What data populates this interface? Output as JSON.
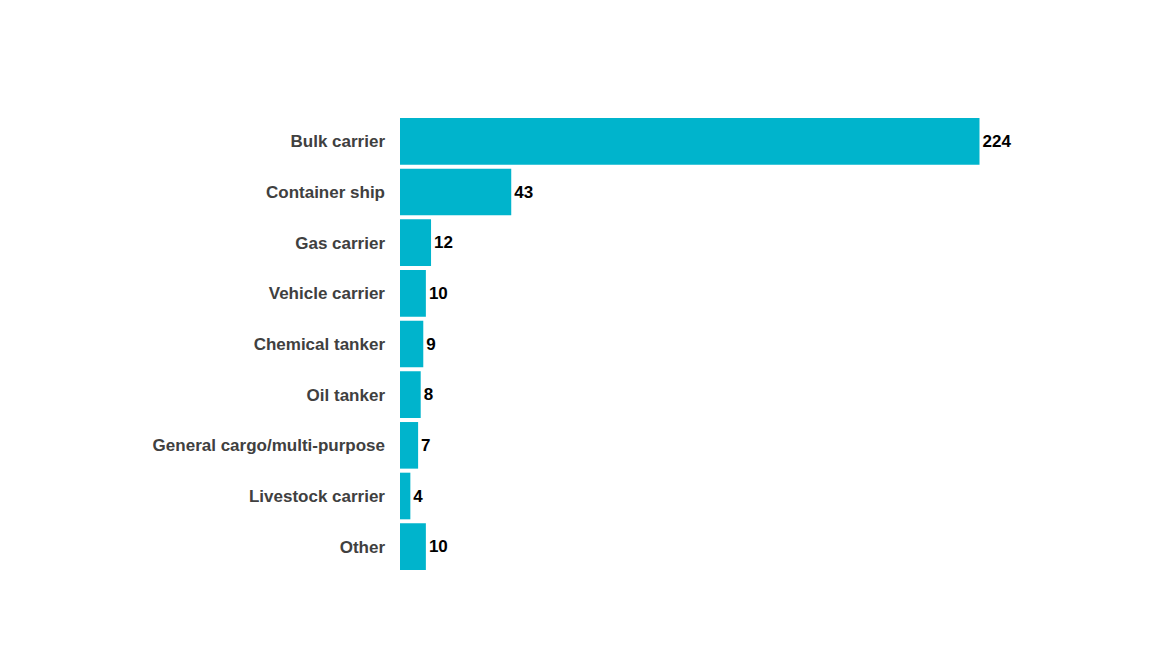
{
  "chart_data": {
    "type": "bar",
    "orientation": "horizontal",
    "categories": [
      "Bulk carrier",
      "Container ship",
      "Gas carrier",
      "Vehicle carrier",
      "Chemical tanker",
      "Oil tanker",
      "General cargo/multi-purpose",
      "Livestock carrier",
      "Other"
    ],
    "values": [
      224,
      43,
      12,
      10,
      9,
      8,
      7,
      4,
      10
    ],
    "color": "#00b4cc",
    "data_labels": true,
    "tick_labels": "y",
    "grid": false
  }
}
